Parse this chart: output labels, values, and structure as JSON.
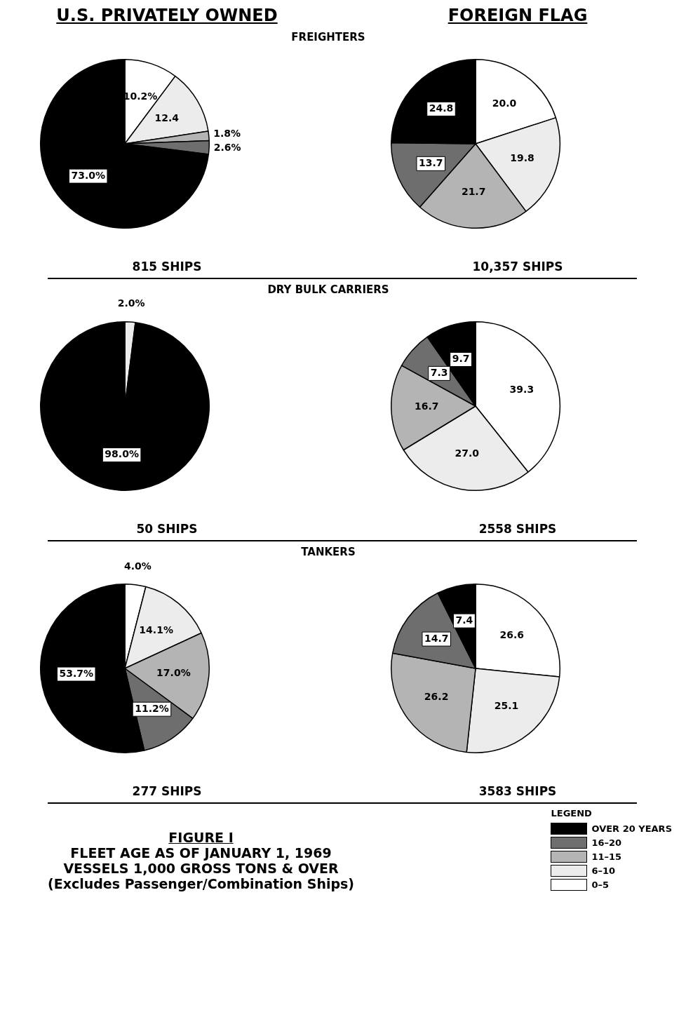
{
  "chart_data": [
    {
      "type": "pie",
      "title": "U.S. PRIVATELY OWNED",
      "subtitle": "FREIGHTERS",
      "categories": [
        null,
        null,
        null,
        null,
        null
      ],
      "values": [
        10.2,
        12.4,
        1.8,
        2.6,
        73.0
      ],
      "colors": [
        "#ffffff",
        "#ececec",
        "#b4b4b4",
        "#6e6e6e",
        "#000000"
      ],
      "value_labels": [
        "10.2%",
        "12.4",
        "1.8%",
        "2.6%",
        "73.0%"
      ],
      "annotations": [
        "815 SHIPS"
      ]
    },
    {
      "type": "pie",
      "title": "FOREIGN FLAG",
      "categories": [
        null,
        null,
        null,
        null,
        null
      ],
      "values": [
        20.0,
        19.8,
        21.7,
        13.7,
        24.8
      ],
      "colors": [
        "#ffffff",
        "#ececec",
        "#b4b4b4",
        "#6e6e6e",
        "#000000"
      ],
      "value_labels": [
        "20.0",
        "19.8",
        "21.7",
        "13.7",
        "24.8"
      ],
      "annotations": [
        "10,357 SHIPS"
      ]
    },
    {
      "type": "pie",
      "subtitle": "DRY BULK CARRIERS",
      "categories": [
        null,
        null
      ],
      "values": [
        2.0,
        98.0
      ],
      "colors": [
        "#ececec",
        "#000000"
      ],
      "value_labels": [
        "2.0%",
        "98.0%"
      ],
      "annotations": [
        "50 SHIPS"
      ]
    },
    {
      "type": "pie",
      "categories": [
        null,
        null,
        null,
        null,
        null
      ],
      "values": [
        39.3,
        27.0,
        16.7,
        7.3,
        9.7
      ],
      "colors": [
        "#ffffff",
        "#ececec",
        "#b4b4b4",
        "#6e6e6e",
        "#000000"
      ],
      "value_labels": [
        "39.3",
        "27.0",
        "16.7",
        "7.3",
        "9.7"
      ],
      "annotations": [
        "2558 SHIPS"
      ]
    },
    {
      "type": "pie",
      "subtitle": "TANKERS",
      "categories": [
        "0–5",
        "6–10",
        "11–15",
        "16–20",
        "OVER 20 YEARS"
      ],
      "values": [
        4.0,
        14.1,
        17.0,
        11.2,
        53.7
      ],
      "colors": [
        "#ffffff",
        "#ececec",
        "#b4b4b4",
        "#6e6e6e",
        "#000000"
      ],
      "value_labels": [
        "4.0%",
        "14.1%",
        "17.0%",
        "11.2%",
        "53.7%"
      ],
      "annotations": [
        "277 SHIPS"
      ],
      "legend": "bottom right",
      "legend_title": "LEGEND"
    },
    {
      "type": "pie",
      "categories": [
        null,
        null,
        null,
        null,
        null
      ],
      "values": [
        26.6,
        25.1,
        26.2,
        14.7,
        7.4
      ],
      "colors": [
        "#ffffff",
        "#ececec",
        "#b4b4b4",
        "#6e6e6e",
        "#000000"
      ],
      "value_labels": [
        "26.6",
        "25.1",
        "26.2",
        "14.7",
        "7.4"
      ],
      "annotations": [
        "3583 SHIPS"
      ]
    },
    {
      "type": "other",
      "title": "FIGURE I",
      "annotations": [
        "FLEET AGE AS OF JANUARY 1, 1969",
        "VESSELS 1,000 GROSS TONS & OVER",
        "(Excludes Passenger/Combination Ships)"
      ]
    }
  ]
}
